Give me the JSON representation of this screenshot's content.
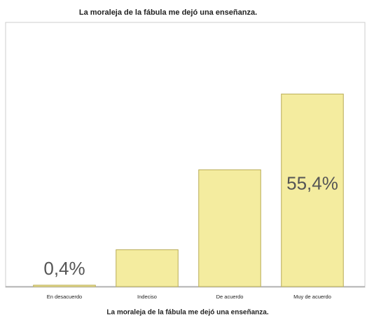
{
  "chart_data": {
    "type": "bar",
    "title": "La moraleja de la fábula me dejó una enseñanza.",
    "x_label": "La moraleja de la fábula me dejó una enseñanza.",
    "categories": [
      "En desacuerdo",
      "Indeciso",
      "De acuerdo",
      "Muy de acuerdo"
    ],
    "values": [
      0.4,
      10.6,
      33.6,
      55.4
    ],
    "value_labels": [
      "0,4%",
      null,
      null,
      "55,4%"
    ],
    "color": "#f4ec9f",
    "ylim": [
      0,
      76
    ]
  }
}
